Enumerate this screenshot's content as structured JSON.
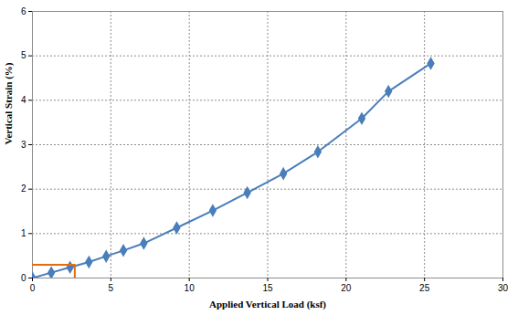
{
  "chart_data": {
    "type": "line",
    "x_label": "Applied Vertical Load (ksf)",
    "y_label": "Vertical Strain (%)",
    "xlim": [
      0,
      30
    ],
    "xticks": [
      0,
      5,
      10,
      15,
      20,
      25,
      30
    ],
    "ylim": [
      0,
      6
    ],
    "yticks": [
      0,
      1,
      2,
      3,
      4,
      5,
      6
    ],
    "grid": true,
    "series": [
      {
        "color": "#4a7ebb",
        "marker": "diamond",
        "line_style": "solid",
        "x": [
          0,
          1.2,
          2.4,
          3.6,
          4.7,
          5.8,
          7.1,
          9.2,
          11.5,
          13.7,
          16.0,
          18.2,
          21.0,
          22.7,
          25.4
        ],
        "values": [
          0,
          0.12,
          0.24,
          0.36,
          0.49,
          0.62,
          0.78,
          1.13,
          1.52,
          1.92,
          2.35,
          2.84,
          3.59,
          4.2,
          4.83
        ]
      },
      {
        "color": "#e46c0a",
        "marker": "none",
        "line_style": "solid",
        "x": [
          0,
          2.7,
          2.7
        ],
        "values": [
          0.3,
          0.3,
          0
        ]
      }
    ]
  }
}
